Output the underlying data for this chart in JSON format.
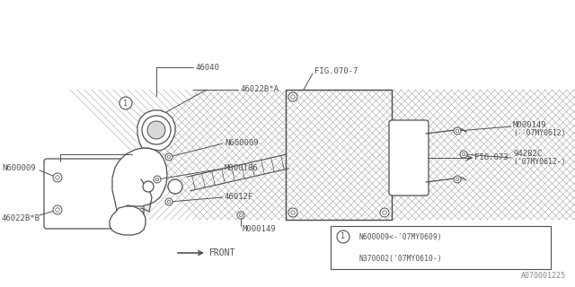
{
  "bg_color": "#ffffff",
  "lc": "#505050",
  "tc": "#505050",
  "fig_width": 6.4,
  "fig_height": 3.2,
  "dpi": 100,
  "watermark": "A070001225",
  "legend_line1": "N600009<-'07MY0609)",
  "legend_line2": "N370002('07MY0610-)"
}
